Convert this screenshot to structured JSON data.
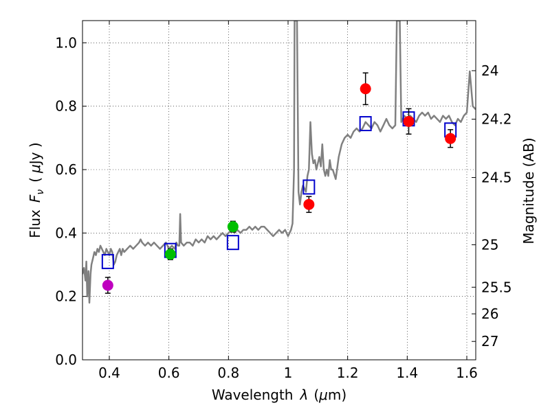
{
  "chart_data": {
    "type": "scatter",
    "title": "",
    "xlabel_text": "Wavelength",
    "xlabel_symbol": "λ",
    "xlabel_unit_open": "(",
    "xlabel_unit_mu": "μ",
    "xlabel_unit_rest": "m)",
    "ylabel_text": "Flux",
    "ylabel_symbol": "F",
    "ylabel_sub": "ν",
    "ylabel_unit_open": "(",
    "ylabel_unit_mu": "μ",
    "ylabel_unit_rest": "Jy )",
    "y2label": "Magnitude (AB)",
    "xlim": [
      0.31,
      1.63
    ],
    "ylim": [
      0.0,
      1.07
    ],
    "grid": true,
    "x_ticks": [
      0.4,
      0.6,
      0.8,
      1.0,
      1.2,
      1.4,
      1.6
    ],
    "x_tick_labels": [
      "0.4",
      "0.6",
      "0.8",
      "1",
      "1.2",
      "1.4",
      "1.6"
    ],
    "y_ticks": [
      0.0,
      0.2,
      0.4,
      0.6,
      0.8,
      1.0
    ],
    "y_tick_labels": [
      "0.0",
      "0.2",
      "0.4",
      "0.6",
      "0.8",
      "1.0"
    ],
    "mag_ticks": [
      {
        "label": "24",
        "flux": 0.912
      },
      {
        "label": "24.2",
        "flux": 0.759
      },
      {
        "label": "24.5",
        "flux": 0.575
      },
      {
        "label": "25",
        "flux": 0.363
      },
      {
        "label": "25.5",
        "flux": 0.229
      },
      {
        "label": "26",
        "flux": 0.145
      },
      {
        "label": "27",
        "flux": 0.058
      }
    ],
    "spectrum_color": "#808080",
    "spectrum": [
      [
        0.31,
        0.27
      ],
      [
        0.315,
        0.29
      ],
      [
        0.32,
        0.25
      ],
      [
        0.323,
        0.31
      ],
      [
        0.326,
        0.2
      ],
      [
        0.33,
        0.28
      ],
      [
        0.333,
        0.18
      ],
      [
        0.337,
        0.27
      ],
      [
        0.34,
        0.3
      ],
      [
        0.345,
        0.32
      ],
      [
        0.35,
        0.34
      ],
      [
        0.355,
        0.33
      ],
      [
        0.36,
        0.35
      ],
      [
        0.365,
        0.34
      ],
      [
        0.37,
        0.36
      ],
      [
        0.375,
        0.35
      ],
      [
        0.38,
        0.34
      ],
      [
        0.385,
        0.33
      ],
      [
        0.39,
        0.35
      ],
      [
        0.395,
        0.34
      ],
      [
        0.4,
        0.33
      ],
      [
        0.405,
        0.35
      ],
      [
        0.41,
        0.34
      ],
      [
        0.415,
        0.3
      ],
      [
        0.42,
        0.31
      ],
      [
        0.425,
        0.33
      ],
      [
        0.43,
        0.34
      ],
      [
        0.435,
        0.35
      ],
      [
        0.44,
        0.33
      ],
      [
        0.445,
        0.35
      ],
      [
        0.45,
        0.34
      ],
      [
        0.46,
        0.35
      ],
      [
        0.47,
        0.36
      ],
      [
        0.48,
        0.35
      ],
      [
        0.49,
        0.36
      ],
      [
        0.5,
        0.37
      ],
      [
        0.505,
        0.38
      ],
      [
        0.51,
        0.37
      ],
      [
        0.52,
        0.36
      ],
      [
        0.53,
        0.37
      ],
      [
        0.54,
        0.36
      ],
      [
        0.55,
        0.37
      ],
      [
        0.56,
        0.36
      ],
      [
        0.57,
        0.35
      ],
      [
        0.58,
        0.36
      ],
      [
        0.59,
        0.37
      ],
      [
        0.6,
        0.35
      ],
      [
        0.61,
        0.36
      ],
      [
        0.62,
        0.35
      ],
      [
        0.625,
        0.37
      ],
      [
        0.63,
        0.36
      ],
      [
        0.635,
        0.36
      ],
      [
        0.638,
        0.46
      ],
      [
        0.641,
        0.37
      ],
      [
        0.65,
        0.36
      ],
      [
        0.66,
        0.37
      ],
      [
        0.67,
        0.37
      ],
      [
        0.68,
        0.36
      ],
      [
        0.69,
        0.38
      ],
      [
        0.7,
        0.37
      ],
      [
        0.71,
        0.38
      ],
      [
        0.72,
        0.37
      ],
      [
        0.73,
        0.39
      ],
      [
        0.74,
        0.38
      ],
      [
        0.75,
        0.39
      ],
      [
        0.76,
        0.38
      ],
      [
        0.77,
        0.39
      ],
      [
        0.78,
        0.4
      ],
      [
        0.79,
        0.39
      ],
      [
        0.8,
        0.4
      ],
      [
        0.81,
        0.41
      ],
      [
        0.82,
        0.4
      ],
      [
        0.83,
        0.41
      ],
      [
        0.84,
        0.4
      ],
      [
        0.85,
        0.41
      ],
      [
        0.86,
        0.41
      ],
      [
        0.87,
        0.42
      ],
      [
        0.88,
        0.41
      ],
      [
        0.89,
        0.42
      ],
      [
        0.9,
        0.41
      ],
      [
        0.91,
        0.42
      ],
      [
        0.92,
        0.42
      ],
      [
        0.93,
        0.41
      ],
      [
        0.94,
        0.4
      ],
      [
        0.95,
        0.39
      ],
      [
        0.96,
        0.4
      ],
      [
        0.97,
        0.41
      ],
      [
        0.98,
        0.4
      ],
      [
        0.99,
        0.41
      ],
      [
        1.0,
        0.39
      ],
      [
        1.01,
        0.41
      ],
      [
        1.015,
        0.43
      ],
      [
        1.02,
        0.6
      ],
      [
        1.022,
        1.07
      ],
      [
        1.03,
        1.07
      ],
      [
        1.035,
        0.53
      ],
      [
        1.04,
        0.49
      ],
      [
        1.045,
        0.53
      ],
      [
        1.05,
        0.55
      ],
      [
        1.06,
        0.53
      ],
      [
        1.065,
        0.58
      ],
      [
        1.07,
        0.6
      ],
      [
        1.075,
        0.75
      ],
      [
        1.08,
        0.65
      ],
      [
        1.085,
        0.62
      ],
      [
        1.09,
        0.63
      ],
      [
        1.095,
        0.6
      ],
      [
        1.1,
        0.62
      ],
      [
        1.105,
        0.64
      ],
      [
        1.11,
        0.61
      ],
      [
        1.115,
        0.68
      ],
      [
        1.12,
        0.6
      ],
      [
        1.125,
        0.58
      ],
      [
        1.13,
        0.6
      ],
      [
        1.135,
        0.58
      ],
      [
        1.14,
        0.63
      ],
      [
        1.145,
        0.6
      ],
      [
        1.15,
        0.6
      ],
      [
        1.16,
        0.57
      ],
      [
        1.17,
        0.64
      ],
      [
        1.18,
        0.68
      ],
      [
        1.19,
        0.7
      ],
      [
        1.2,
        0.71
      ],
      [
        1.21,
        0.7
      ],
      [
        1.22,
        0.72
      ],
      [
        1.23,
        0.73
      ],
      [
        1.24,
        0.72
      ],
      [
        1.25,
        0.73
      ],
      [
        1.26,
        0.75
      ],
      [
        1.27,
        0.74
      ],
      [
        1.28,
        0.73
      ],
      [
        1.29,
        0.75
      ],
      [
        1.3,
        0.74
      ],
      [
        1.31,
        0.72
      ],
      [
        1.32,
        0.74
      ],
      [
        1.33,
        0.76
      ],
      [
        1.34,
        0.74
      ],
      [
        1.35,
        0.73
      ],
      [
        1.36,
        0.74
      ],
      [
        1.365,
        1.07
      ],
      [
        1.375,
        1.07
      ],
      [
        1.38,
        0.75
      ],
      [
        1.39,
        0.77
      ],
      [
        1.4,
        0.76
      ],
      [
        1.41,
        0.77
      ],
      [
        1.42,
        0.76
      ],
      [
        1.43,
        0.75
      ],
      [
        1.44,
        0.77
      ],
      [
        1.45,
        0.78
      ],
      [
        1.46,
        0.77
      ],
      [
        1.47,
        0.78
      ],
      [
        1.48,
        0.76
      ],
      [
        1.49,
        0.77
      ],
      [
        1.5,
        0.76
      ],
      [
        1.51,
        0.75
      ],
      [
        1.52,
        0.77
      ],
      [
        1.53,
        0.76
      ],
      [
        1.54,
        0.77
      ],
      [
        1.55,
        0.75
      ],
      [
        1.56,
        0.74
      ],
      [
        1.57,
        0.76
      ],
      [
        1.58,
        0.75
      ],
      [
        1.59,
        0.77
      ],
      [
        1.6,
        0.78
      ],
      [
        1.61,
        0.91
      ],
      [
        1.62,
        0.8
      ],
      [
        1.63,
        0.79
      ]
    ],
    "model_color": "#0000cc",
    "model_points": [
      {
        "x": 0.395,
        "y": 0.31
      },
      {
        "x": 0.605,
        "y": 0.345
      },
      {
        "x": 0.815,
        "y": 0.37
      },
      {
        "x": 1.07,
        "y": 0.545
      },
      {
        "x": 1.26,
        "y": 0.745
      },
      {
        "x": 1.405,
        "y": 0.76
      },
      {
        "x": 1.545,
        "y": 0.725
      }
    ],
    "observed_points": [
      {
        "x": 0.395,
        "y": 0.235,
        "err": 0.025,
        "color": "#bf00bf"
      },
      {
        "x": 0.605,
        "y": 0.333,
        "err": 0.017,
        "color": "#00bf00"
      },
      {
        "x": 0.815,
        "y": 0.42,
        "err": 0.017,
        "color": "#00bf00"
      },
      {
        "x": 1.07,
        "y": 0.49,
        "err": 0.025,
        "color": "#ff0000"
      },
      {
        "x": 1.26,
        "y": 0.855,
        "err": 0.05,
        "color": "#ff0000"
      },
      {
        "x": 1.405,
        "y": 0.752,
        "err": 0.04,
        "color": "#ff0000"
      },
      {
        "x": 1.545,
        "y": 0.698,
        "err": 0.028,
        "color": "#ff0000"
      }
    ]
  }
}
